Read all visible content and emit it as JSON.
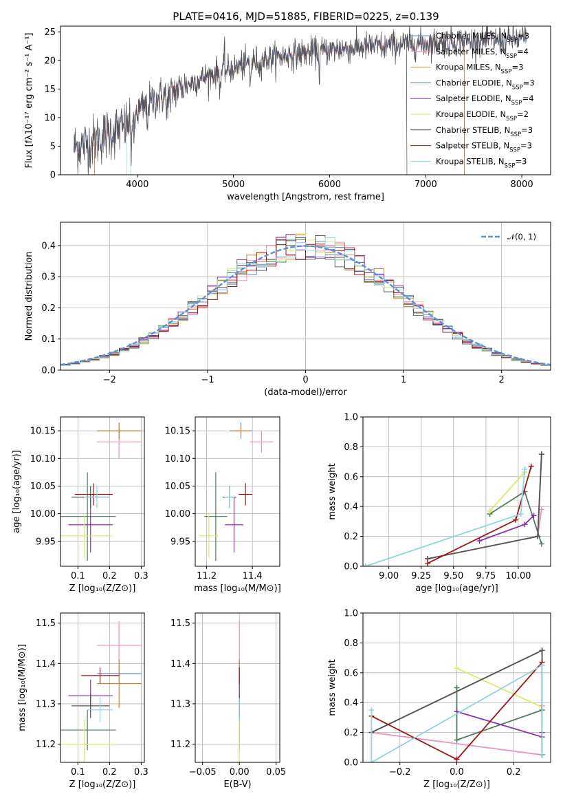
{
  "colors": {
    "series": [
      "#5b8ee0",
      "#ee8fbf",
      "#d2802a",
      "#4f7a5c",
      "#8b2fb0",
      "#dfe66a",
      "#555555",
      "#a01414",
      "#8fd3df"
    ],
    "gaussian": "#5b8ee0",
    "grid": "#b0b0b0"
  },
  "chart_data": [
    {
      "id": "spectrum",
      "type": "line",
      "title": "PLATE=0416, MJD=51885, FIBERID=0225, z=0.139",
      "xlabel": "wavelength [Angstrom, rest frame]",
      "ylabel": "Flux [fλ10⁻¹⁷ erg cm⁻² s⁻¹ A⁻¹]",
      "xlim": [
        3200,
        8300
      ],
      "ylim": [
        0,
        26
      ],
      "xticks": [
        4000,
        5000,
        6000,
        7000,
        8000
      ],
      "yticks": [
        0,
        5,
        10,
        15,
        20,
        25
      ],
      "grid": false,
      "legend_position": "top-right",
      "continuum": {
        "x": [
          3340,
          3500,
          3700,
          3900,
          4000,
          4200,
          4400,
          4600,
          4800,
          5000,
          5200,
          5400,
          5600,
          5800,
          6000,
          6200,
          6400,
          6600,
          6800,
          7000,
          7200,
          7400,
          7600,
          7800,
          8050
        ],
        "y": [
          4.8,
          5.5,
          7.2,
          8.6,
          11.0,
          13.3,
          14.8,
          16.4,
          17.7,
          18.6,
          19.8,
          20.4,
          21.0,
          21.4,
          21.8,
          22.1,
          22.4,
          22.6,
          22.9,
          23.0,
          23.3,
          23.4,
          23.5,
          23.6,
          23.8
        ]
      },
      "absorption_lines": [
        {
          "x": 3934,
          "depth": 6
        },
        {
          "x": 3968,
          "depth": 5
        },
        {
          "x": 4102,
          "depth": 3
        },
        {
          "x": 4304,
          "depth": 4
        },
        {
          "x": 4340,
          "depth": 3
        },
        {
          "x": 4861,
          "depth": 3
        },
        {
          "x": 5175,
          "depth": 4
        },
        {
          "x": 5270,
          "depth": 2
        },
        {
          "x": 5893,
          "depth": 4
        },
        {
          "x": 6563,
          "depth": 2
        }
      ],
      "emission_lines": [
        {
          "x": 4905,
          "height": 3.5
        }
      ],
      "series": [
        {
          "name": "Chabrier MILES, N",
          "sub": "SSP",
          "suffix": "=3",
          "cut": null
        },
        {
          "name": "Salpeter MILES, N",
          "sub": "SSP",
          "suffix": "=4",
          "cut": null
        },
        {
          "name": "Kroupa MILES, N",
          "sub": "SSP",
          "suffix": "=3",
          "cut": 7400
        },
        {
          "name": "Chabrier ELODIE, N",
          "sub": "SSP",
          "suffix": "=3",
          "cut": 6800
        },
        {
          "name": "Salpeter ELODIE, N",
          "sub": "SSP",
          "suffix": "=4",
          "cut": 6800
        },
        {
          "name": "Kroupa ELODIE, N",
          "sub": "SSP",
          "suffix": "=2",
          "cut": 6800
        },
        {
          "name": "Chabrier STELIB, N",
          "sub": "SSP",
          "suffix": "=3",
          "cut": null
        },
        {
          "name": "Salpeter STELIB, N",
          "sub": "SSP",
          "suffix": "=3",
          "cut": 7400
        },
        {
          "name": "Kroupa STELIB, N",
          "sub": "SSP",
          "suffix": "=3",
          "cut": 7400
        }
      ]
    },
    {
      "id": "residuals",
      "type": "step",
      "xlabel": "(data-model)/error",
      "ylabel": "Normed distribution",
      "xlim": [
        -2.5,
        2.5
      ],
      "ylim": [
        0,
        0.475
      ],
      "xticks": [
        -2,
        -1,
        0,
        1,
        2
      ],
      "yticks": [
        0.0,
        0.1,
        0.2,
        0.3,
        0.4
      ],
      "grid": true,
      "legend_position": "top-right",
      "gaussian_legend": "𝒩(0, 1)",
      "bin_width": 0.1
    },
    {
      "id": "age_vs_Z",
      "type": "errorbar",
      "xlabel": "Z [log₁₀(Z/Z⊙)]",
      "ylabel": "age  [log₁₀(age/yr)]",
      "xlim": [
        0.045,
        0.31
      ],
      "ylim": [
        9.905,
        10.175
      ],
      "xticks": [
        0.1,
        0.2,
        0.3
      ],
      "yticks": [
        9.95,
        10.0,
        10.05,
        10.1,
        10.15
      ],
      "grid": true,
      "points": [
        {
          "x": 0.23,
          "y": 10.15,
          "xerr": 0.07,
          "yerr": 0.012
        },
        {
          "x": 0.23,
          "y": 10.13,
          "xerr": 0.07,
          "yerr": 0.03
        },
        {
          "x": 0.23,
          "y": 10.15,
          "xerr": 0.07,
          "yerr": 0.015
        },
        {
          "x": 0.13,
          "y": 9.995,
          "xerr": 0.09,
          "yerr": 0.08
        },
        {
          "x": 0.14,
          "y": 9.98,
          "xerr": 0.07,
          "yerr": 0.05
        },
        {
          "x": 0.12,
          "y": 9.96,
          "xerr": 0.09,
          "yerr": 0.04
        },
        {
          "x": 0.14,
          "y": 10.03,
          "xerr": 0.06,
          "yerr": 0.02
        },
        {
          "x": 0.15,
          "y": 10.035,
          "xerr": 0.06,
          "yerr": 0.02
        },
        {
          "x": 0.16,
          "y": 10.03,
          "xerr": 0.04,
          "yerr": 0.02
        }
      ]
    },
    {
      "id": "age_vs_mass",
      "type": "errorbar",
      "xlabel": "mass [log₁₀(M/M⊙)]",
      "ylabel": "",
      "xlim": [
        11.15,
        11.52
      ],
      "ylim": [
        9.905,
        10.175
      ],
      "xticks": [
        11.2,
        11.4
      ],
      "yticks": [
        9.95,
        10.0,
        10.05,
        10.1,
        10.15
      ],
      "grid": true,
      "points": [
        {
          "x": 11.35,
          "y": 10.15,
          "xerr": 0.05,
          "yerr": 0.015
        },
        {
          "x": 11.44,
          "y": 10.13,
          "xerr": 0.05,
          "yerr": 0.02
        },
        {
          "x": 11.35,
          "y": 10.15,
          "xerr": 0.04,
          "yerr": 0.01
        },
        {
          "x": 11.24,
          "y": 9.995,
          "xerr": 0.05,
          "yerr": 0.08
        },
        {
          "x": 11.32,
          "y": 9.98,
          "xerr": 0.04,
          "yerr": 0.05
        },
        {
          "x": 11.21,
          "y": 9.96,
          "xerr": 0.04,
          "yerr": 0.04
        },
        {
          "x": 11.3,
          "y": 10.03,
          "xerr": 0.03,
          "yerr": 0.02
        },
        {
          "x": 11.37,
          "y": 10.035,
          "xerr": 0.03,
          "yerr": 0.02
        },
        {
          "x": 11.3,
          "y": 10.03,
          "xerr": 0.02,
          "yerr": 0.02
        }
      ]
    },
    {
      "id": "weight_vs_age",
      "type": "line",
      "xlabel": "age  [log₁₀(age/yr)]",
      "ylabel": "mass weight",
      "xlim": [
        8.8,
        10.25
      ],
      "ylim": [
        0,
        1
      ],
      "xticks": [
        9.0,
        9.25,
        9.5,
        9.75,
        10.0
      ],
      "yticks": [
        0.0,
        0.2,
        0.4,
        0.6,
        0.8,
        1.0
      ],
      "grid": true,
      "series": [
        {
          "x": [
            9.3,
            10.15,
            10.18
          ],
          "y": [
            0.05,
            0.2,
            0.75
          ]
        },
        {
          "x": [
            9.3,
            10.15,
            10.18
          ],
          "y": [
            0.05,
            0.2,
            0.38
          ]
        },
        {
          "x": [
            9.3,
            10.15,
            10.18
          ],
          "y": [
            0.05,
            0.2,
            0.75
          ]
        },
        {
          "x": [
            9.78,
            10.05,
            10.18
          ],
          "y": [
            0.35,
            0.5,
            0.15
          ]
        },
        {
          "x": [
            9.7,
            10.05,
            10.12
          ],
          "y": [
            0.17,
            0.28,
            0.34
          ]
        },
        {
          "x": [
            9.78,
            10.05
          ],
          "y": [
            0.37,
            0.63
          ]
        },
        {
          "x": [
            9.3,
            10.15,
            10.18
          ],
          "y": [
            0.05,
            0.2,
            0.75
          ]
        },
        {
          "x": [
            9.3,
            9.98,
            10.1
          ],
          "y": [
            0.02,
            0.31,
            0.67
          ]
        },
        {
          "x": [
            8.82,
            10.02,
            10.05
          ],
          "y": [
            0.0,
            0.35,
            0.65
          ]
        }
      ]
    },
    {
      "id": "mass_vs_Z",
      "type": "errorbar",
      "xlabel": "Z [log₁₀(Z/Z⊙)]",
      "ylabel": "mass [log₁₀(M/M⊙)]",
      "xlim": [
        0.045,
        0.31
      ],
      "ylim": [
        11.155,
        11.525
      ],
      "xticks": [
        0.1,
        0.2,
        0.3
      ],
      "yticks": [
        11.2,
        11.3,
        11.4,
        11.5
      ],
      "grid": true,
      "points": [
        {
          "x": 0.23,
          "y": 11.375,
          "xerr": 0.07,
          "yerr": 0.02
        },
        {
          "x": 0.23,
          "y": 11.445,
          "xerr": 0.07,
          "yerr": 0.06
        },
        {
          "x": 0.23,
          "y": 11.35,
          "xerr": 0.07,
          "yerr": 0.06
        },
        {
          "x": 0.13,
          "y": 11.235,
          "xerr": 0.09,
          "yerr": 0.05
        },
        {
          "x": 0.14,
          "y": 11.32,
          "xerr": 0.07,
          "yerr": 0.04
        },
        {
          "x": 0.12,
          "y": 11.2,
          "xerr": 0.09,
          "yerr": 0.06
        },
        {
          "x": 0.14,
          "y": 11.295,
          "xerr": 0.06,
          "yerr": 0.03
        },
        {
          "x": 0.17,
          "y": 11.37,
          "xerr": 0.06,
          "yerr": 0.02
        },
        {
          "x": 0.17,
          "y": 11.285,
          "xerr": 0.04,
          "yerr": 0.03
        }
      ]
    },
    {
      "id": "mass_vs_ebv",
      "type": "errorbar",
      "xlabel": "E(B-V)",
      "ylabel": "",
      "xlim": [
        -0.06,
        0.055
      ],
      "ylim": [
        11.155,
        11.525
      ],
      "xticks": [
        -0.05,
        0.0,
        0.05
      ],
      "yticks": [
        11.2,
        11.3,
        11.4,
        11.5
      ],
      "grid": true,
      "points": [
        {
          "x": 0.0,
          "y": 11.375,
          "xerr": 0,
          "yerr": 0.02
        },
        {
          "x": 0.0,
          "y": 11.445,
          "xerr": 0,
          "yerr": 0.06
        },
        {
          "x": 0.0,
          "y": 11.35,
          "xerr": 0,
          "yerr": 0.06
        },
        {
          "x": 0.0,
          "y": 11.235,
          "xerr": 0,
          "yerr": 0.05
        },
        {
          "x": 0.0,
          "y": 11.32,
          "xerr": 0,
          "yerr": 0.04
        },
        {
          "x": 0.0,
          "y": 11.2,
          "xerr": 0,
          "yerr": 0.06
        },
        {
          "x": 0.0,
          "y": 11.295,
          "xerr": 0,
          "yerr": 0.03
        },
        {
          "x": 0.0,
          "y": 11.37,
          "xerr": 0,
          "yerr": 0.02
        },
        {
          "x": 0.0,
          "y": 11.285,
          "xerr": 0,
          "yerr": 0.03
        }
      ]
    },
    {
      "id": "weight_vs_Z",
      "type": "line",
      "xlabel": "Z [log₁₀(Z/Z⊙)]",
      "ylabel": "mass weight",
      "xlim": [
        -0.33,
        0.33
      ],
      "ylim": [
        0,
        1
      ],
      "xticks": [
        -0.2,
        0.0,
        0.2
      ],
      "yticks": [
        0.0,
        0.2,
        0.4,
        0.6,
        0.8,
        1.0
      ],
      "grid": true,
      "series": [
        {
          "x": [
            -0.3,
            0.3,
            0.3
          ],
          "y": [
            0.2,
            0.75,
            0.05
          ]
        },
        {
          "x": [
            -0.3,
            0.3,
            0.3
          ],
          "y": [
            0.2,
            0.05,
            0.38
          ]
        },
        {
          "x": [
            -0.3,
            0.3,
            0.3
          ],
          "y": [
            0.2,
            0.75,
            0.05
          ]
        },
        {
          "x": [
            0.0,
            0.0,
            0.3
          ],
          "y": [
            0.5,
            0.15,
            0.35
          ]
        },
        {
          "x": [
            0.0,
            0.3,
            0.3
          ],
          "y": [
            0.34,
            0.17,
            0.2
          ]
        },
        {
          "x": [
            0.0,
            0.3
          ],
          "y": [
            0.63,
            0.37
          ]
        },
        {
          "x": [
            -0.3,
            0.3,
            0.3
          ],
          "y": [
            0.2,
            0.75,
            0.05
          ]
        },
        {
          "x": [
            -0.3,
            0.0,
            0.3,
            0.3
          ],
          "y": [
            0.31,
            0.02,
            0.67,
            0.05
          ]
        },
        {
          "x": [
            -0.3,
            -0.3,
            0.3,
            0.3
          ],
          "y": [
            0.35,
            0.0,
            0.65,
            0.05
          ]
        }
      ]
    }
  ]
}
